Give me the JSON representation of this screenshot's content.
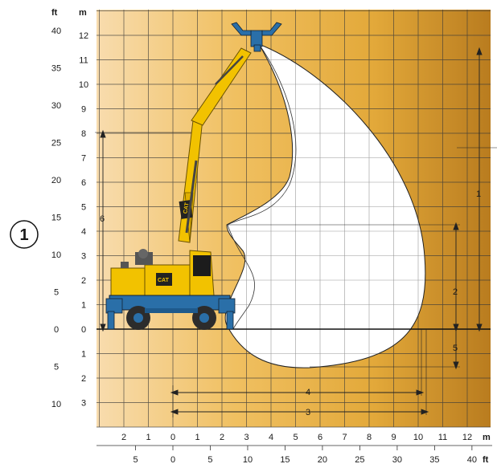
{
  "badge": "1",
  "axes": {
    "ft_label": "ft",
    "m_label": "m",
    "bottom_m_label": "m",
    "bottom_ft_label": "ft",
    "left_ft_ticks": [
      "40",
      "35",
      "30",
      "25",
      "20",
      "15",
      "10",
      "5",
      "0",
      "5",
      "10"
    ],
    "left_m_ticks": [
      "12",
      "11",
      "10",
      "9",
      "8",
      "7",
      "6",
      "5",
      "4",
      "3",
      "2",
      "1",
      "0",
      "1",
      "2",
      "3"
    ],
    "bottom_m_ticks": [
      "2",
      "1",
      "0",
      "1",
      "2",
      "3",
      "4",
      "5",
      "6",
      "7",
      "8",
      "9",
      "10",
      "11",
      "12"
    ],
    "bottom_ft_ticks": [
      "5",
      "0",
      "5",
      "10",
      "15",
      "20",
      "25",
      "30",
      "35",
      "40"
    ]
  },
  "dimensions": {
    "dim1": "1",
    "dim2": "2",
    "dim3": "3",
    "dim4": "4",
    "dim5": "5",
    "dim6": "6"
  },
  "machine": {
    "brand": "CAT",
    "colors": {
      "body": "#f2c200",
      "undercarriage": "#2a6fa8",
      "tire": "#2c2c2c"
    }
  },
  "colors": {
    "background_light": "#f7d9a6",
    "background_dark": "#c98a24",
    "grid": "#3a3a3a",
    "envelope": "#ffffff"
  }
}
